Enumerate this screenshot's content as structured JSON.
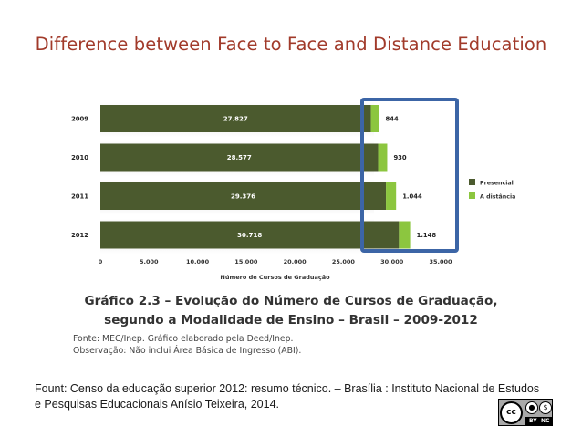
{
  "slide": {
    "title": "Difference between Face to Face and Distance Education",
    "caption_line1": "Gráfico 2.3 – Evolução do Número de Cursos de Graduação,",
    "caption_line2": "segundo a Modalidade de Ensino – Brasil – 2009-2012",
    "note_source": "Fonte: MEC/Inep. Gráfico elaborado pela Deed/Inep.",
    "note_observation": "Observação: Não inclui Área Básica de Ingresso (ABI).",
    "fount_line1": "Fount: Censo da educação superior 2012: resumo técnico. – Brasília : Instituto Nacional de Estudos",
    "fount_line2": "e Pesquisas Educacionais Anísio Teixeira, 2014."
  },
  "license_badge": {
    "cc_text": "cc",
    "by_label": "BY",
    "nc_label": "NC",
    "icons": [
      "cc-icon",
      "by-person-icon",
      "nc-dollar-icon"
    ]
  },
  "chart_data": {
    "type": "bar",
    "orientation": "horizontal",
    "stacked": true,
    "categories": [
      "2009",
      "2010",
      "2011",
      "2012"
    ],
    "series": [
      {
        "name": "Presencial",
        "values": [
          27827,
          28577,
          29376,
          30718
        ],
        "labels": [
          "27.827",
          "28.577",
          "29.376",
          "30.718"
        ],
        "color": "#4b5a2e"
      },
      {
        "name": "A distância",
        "values": [
          844,
          930,
          1044,
          1148
        ],
        "labels": [
          "844",
          "930",
          "1.044",
          "1.148"
        ],
        "color": "#8cc63f"
      }
    ],
    "xlabel": "Número de Cursos de Graduação",
    "ylabel": "",
    "xlim": [
      0,
      35000
    ],
    "xticks": [
      0,
      5000,
      10000,
      15000,
      20000,
      25000,
      30000,
      35000
    ],
    "xtick_labels": [
      "0",
      "5.000",
      "10.000",
      "15.000",
      "20.000",
      "25.000",
      "30.000",
      "35.000"
    ],
    "legend_position": "right",
    "grid": false,
    "highlight_box_color": "#3c65a6"
  }
}
